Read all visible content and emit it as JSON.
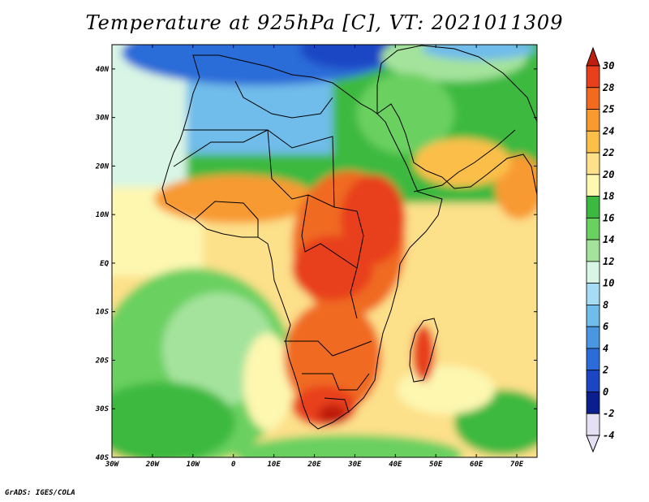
{
  "title": "Temperature at 925hPa [C], VT: 2021011309",
  "footer": "GrADS: IGES/COLA",
  "map": {
    "lon_range": [
      -30,
      75
    ],
    "lat_range": [
      -40,
      45
    ],
    "lon_ticks": [
      "30W",
      "20W",
      "10W",
      "0",
      "10E",
      "20E",
      "30E",
      "40E",
      "50E",
      "60E",
      "70E"
    ],
    "lat_ticks": [
      "40N",
      "30N",
      "20N",
      "10N",
      "EQ",
      "10S",
      "20S",
      "30S",
      "40S"
    ]
  },
  "colorbar": {
    "labels": [
      "30",
      "28",
      "25",
      "24",
      "22",
      "20",
      "18",
      "16",
      "14",
      "12",
      "10",
      "8",
      "6",
      "4",
      "2",
      "0",
      "-2",
      "-4"
    ],
    "colors": [
      "#c01e0e",
      "#e8401c",
      "#f06a20",
      "#f89a30",
      "#fbbf4a",
      "#fde08a",
      "#fdf7b0",
      "#3cb940",
      "#6ad060",
      "#a4e39c",
      "#d8f5e5",
      "#a6dcf4",
      "#70bcea",
      "#4a96e2",
      "#2c6cd8",
      "#1a46c4",
      "#0a1e8e",
      "#e6e0f4"
    ]
  }
}
